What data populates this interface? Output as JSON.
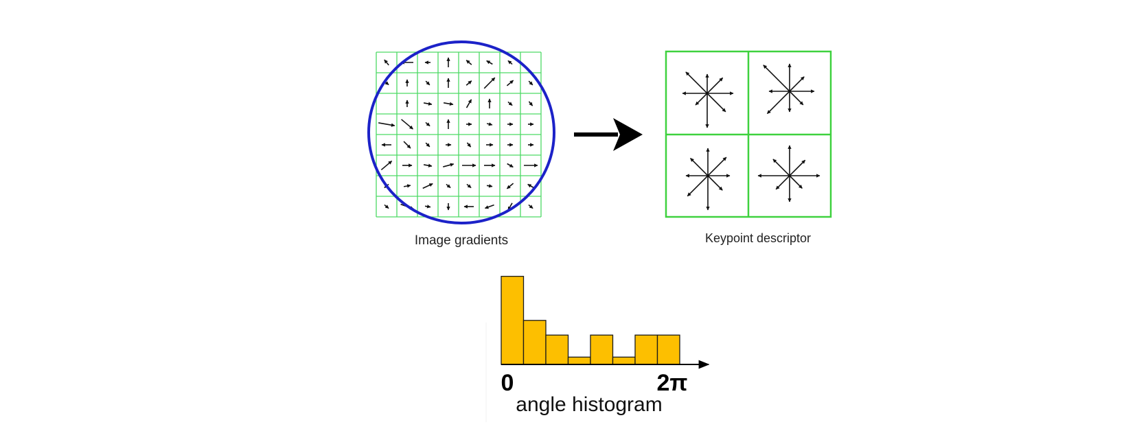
{
  "diagram": {
    "gradients_label": "Image gradients",
    "descriptor_label": "Keypoint descriptor",
    "histogram_caption": "angle histogram",
    "tick_start": "0",
    "tick_end": "2π"
  },
  "colors": {
    "grid": "#4cd964",
    "circle": "#1c22c8",
    "arrow": "#111111",
    "descriptor_border": "#3ed13e",
    "bar_fill": "#fdbf00",
    "bar_stroke": "#1a1a1a"
  },
  "icons": [
    "arrow-right-icon"
  ],
  "chart_data": {
    "type": "bar",
    "values": [
      6,
      3,
      2,
      0.5,
      2,
      0.5,
      2,
      2
    ],
    "ylim": [
      0,
      6
    ],
    "title": "",
    "xlabel": "angle histogram",
    "ylabel": ""
  }
}
